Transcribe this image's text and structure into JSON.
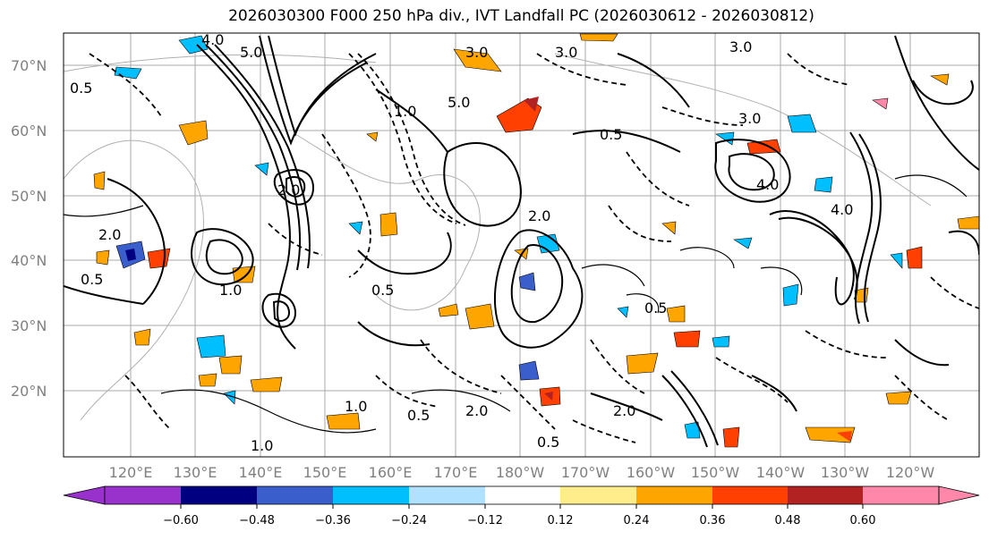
{
  "title": "2026030300 F000 250 hPa div., IVT Landfall PC (2026030612 - 2026030812)",
  "lat_labels": [
    "70°N",
    "60°N",
    "50°N",
    "40°N",
    "30°N",
    "20°N"
  ],
  "lon_labels": [
    "120°E",
    "130°E",
    "140°E",
    "150°E",
    "160°E",
    "170°E",
    "180°W",
    "170°W",
    "160°W",
    "150°W",
    "140°W",
    "130°W",
    "120°W"
  ],
  "colorbar": {
    "colors": [
      "#9932cc",
      "#000080",
      "#3a5fcd",
      "#00bfff",
      "#b0e2ff",
      "#ffffff",
      "#ffec8b",
      "#ffa500",
      "#ff4000",
      "#b22222",
      "#ff88aa"
    ],
    "ticks": [
      "−0.60",
      "−0.48",
      "−0.36",
      "−0.24",
      "−0.12",
      "0.12",
      "0.24",
      "0.36",
      "0.48",
      "0.60"
    ]
  },
  "contour_labels": [
    "3.0",
    "4.0",
    "5.0",
    "0.5",
    "2.0",
    "1.0",
    "3.0",
    "5.0",
    "0.5",
    "2.0",
    "4.0",
    "1.0",
    "0.5",
    "2.0",
    "0.5",
    "3.0",
    "2.0",
    "1.0",
    "0.5",
    "0.5",
    "2.0",
    "3.0",
    "1.0",
    "0.5",
    "4.0"
  ]
}
